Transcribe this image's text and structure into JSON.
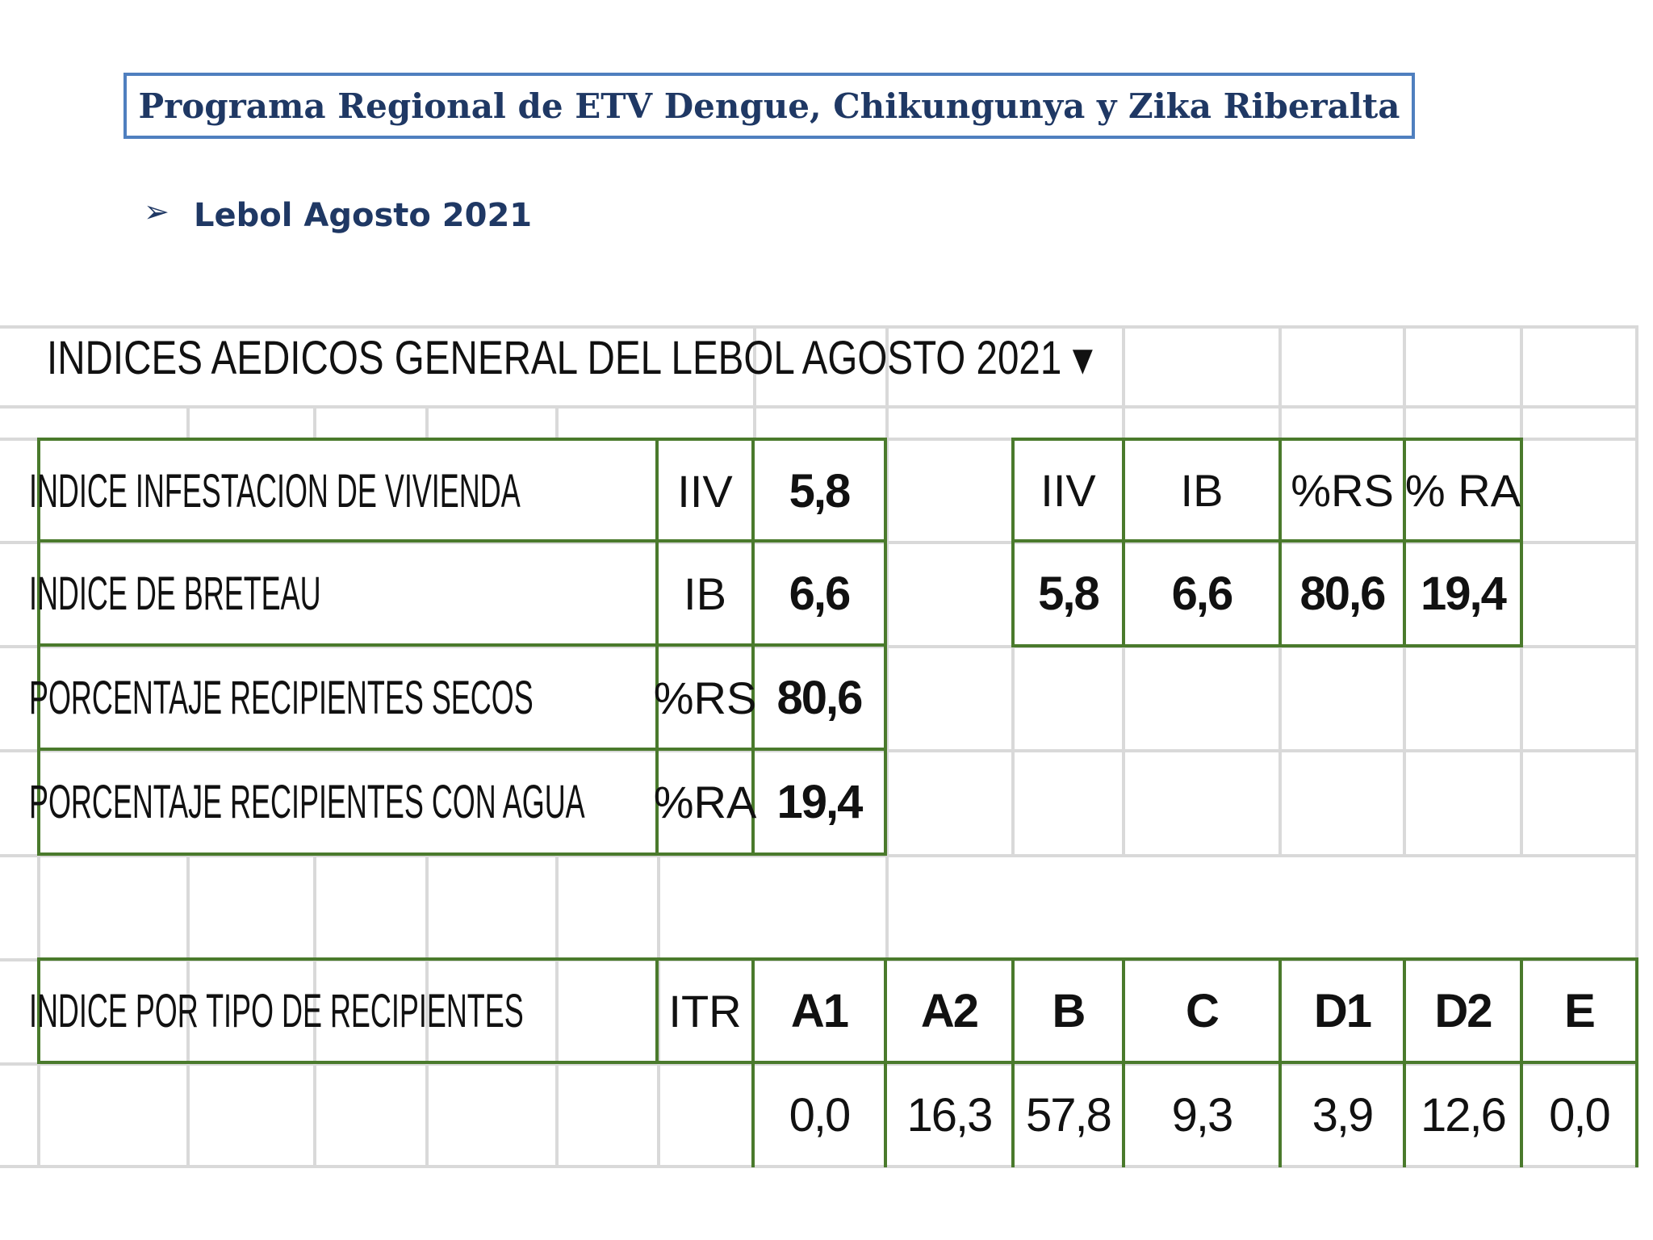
{
  "header": {
    "title": "Programa Regional de ETV Dengue, Chikungunya y Zika Riberalta"
  },
  "section": {
    "bullet_icon": "arrow-bullet",
    "subtitle": "Lebol Agosto 2021"
  },
  "sheet": {
    "heading": "INDICES AEDICOS GENERAL DEL LEBOL AGOSTO 2021",
    "heading_marker": "▼",
    "indices": [
      {
        "label": "INDICE INFESTACION DE VIVIENDA",
        "code": "IIV",
        "value": "5,8"
      },
      {
        "label": "INDICE DE BRETEAU",
        "code": "IB",
        "value": "6,6"
      },
      {
        "label": "PORCENTAJE RECIPIENTES SECOS",
        "code": "%RS",
        "value": "80,6"
      },
      {
        "label": "PORCENTAJE RECIPIENTES CON AGUA",
        "code": "%RA",
        "value": "19,4"
      }
    ],
    "summary": {
      "headers": [
        "IIV",
        "IB",
        "%RS",
        "% RA"
      ],
      "values": [
        "5,8",
        "6,6",
        "80,6",
        "19,4"
      ]
    },
    "itr": {
      "label": "INDICE POR TIPO DE RECIPIENTES",
      "code": "ITR",
      "headers": [
        "A1",
        "A2",
        "B",
        "C",
        "D1",
        "D2",
        "E"
      ],
      "values": [
        "0,0",
        "16,3",
        "57,8",
        "9,3",
        "3,9",
        "12,6",
        "0,0"
      ]
    }
  }
}
